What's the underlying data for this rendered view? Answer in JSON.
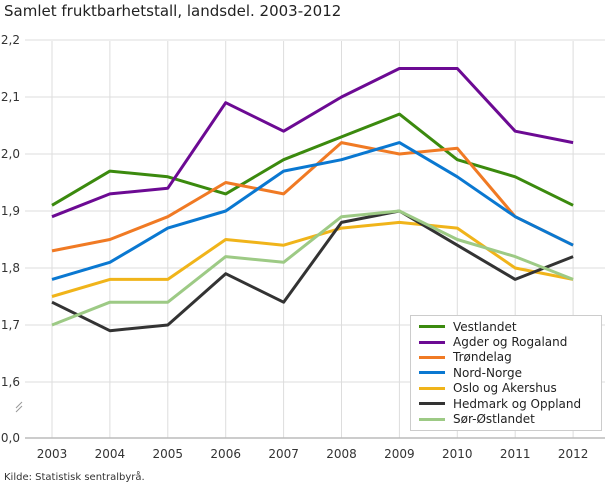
{
  "chart_data": {
    "type": "line",
    "title": "Samlet fruktbarhetstall, landsdel. 2003-2012",
    "source": "Kilde: Statistisk sentralbyrå.",
    "x": [
      "2003",
      "2004",
      "2005",
      "2006",
      "2007",
      "2008",
      "2009",
      "2010",
      "2011",
      "2012"
    ],
    "y_ticks": [
      "0,0",
      "1,6",
      "1,7",
      "1,8",
      "1,9",
      "2,0",
      "2,1",
      "2,2"
    ],
    "ylim": [
      1.6,
      2.2
    ],
    "y_axis_break": true,
    "grid": true,
    "legend_position": "bottom-right",
    "series": [
      {
        "name": "Vestlandet",
        "color": "#3b8a0e",
        "values": [
          1.91,
          1.97,
          1.96,
          1.93,
          1.99,
          2.03,
          2.07,
          1.99,
          1.96,
          1.91
        ]
      },
      {
        "name": "Agder og Rogaland",
        "color": "#6c0a93",
        "values": [
          1.89,
          1.93,
          1.94,
          2.09,
          2.04,
          2.1,
          2.15,
          2.15,
          2.04,
          2.02
        ]
      },
      {
        "name": "Trøndelag",
        "color": "#f07a24",
        "values": [
          1.83,
          1.85,
          1.89,
          1.95,
          1.93,
          2.02,
          2.0,
          2.01,
          1.89,
          1.84
        ]
      },
      {
        "name": "Nord-Norge",
        "color": "#0a78d1",
        "values": [
          1.78,
          1.81,
          1.87,
          1.9,
          1.97,
          1.99,
          2.02,
          1.96,
          1.89,
          1.84
        ]
      },
      {
        "name": "Oslo og Akershus",
        "color": "#f0b41a",
        "values": [
          1.75,
          1.78,
          1.78,
          1.85,
          1.84,
          1.87,
          1.88,
          1.87,
          1.8,
          1.78
        ]
      },
      {
        "name": "Hedmark og Oppland",
        "color": "#333333",
        "values": [
          1.74,
          1.69,
          1.7,
          1.79,
          1.74,
          1.88,
          1.9,
          1.84,
          1.78,
          1.82
        ]
      },
      {
        "name": "Sør-Østlandet",
        "color": "#9dca85",
        "values": [
          1.7,
          1.74,
          1.74,
          1.82,
          1.81,
          1.89,
          1.9,
          1.85,
          1.82,
          1.78
        ]
      }
    ]
  }
}
